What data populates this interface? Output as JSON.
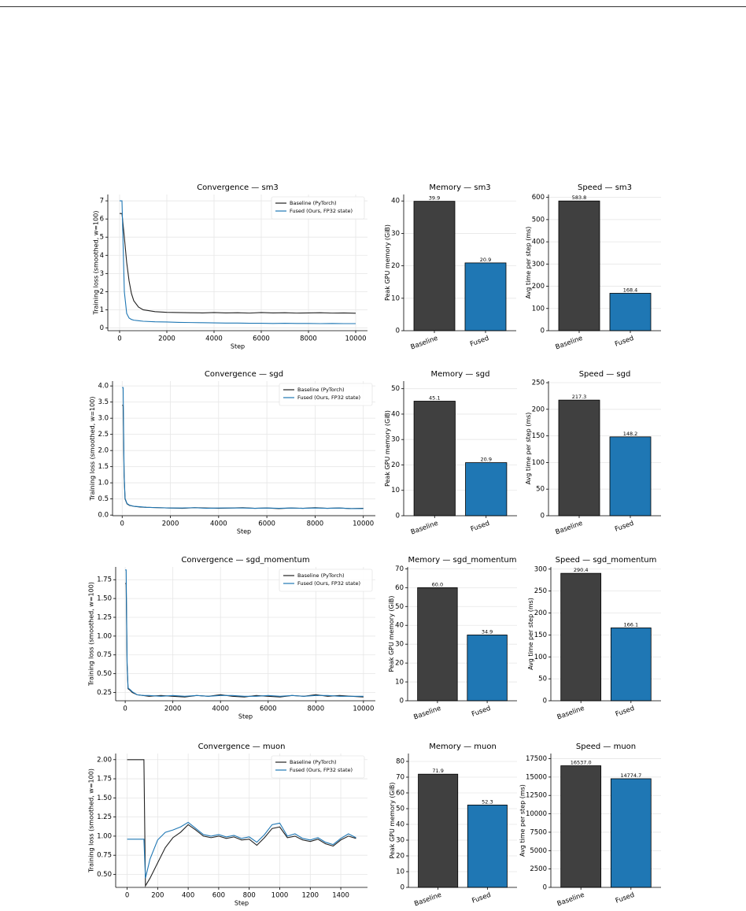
{
  "chart_data": [
    {
      "type": "line",
      "title": "Convergence — sm3",
      "x_label": "Step",
      "y_label": "Training loss (smoothed, w=100)",
      "grid": true,
      "legend": "upper right",
      "x": [
        0,
        100,
        200,
        300,
        400,
        500,
        600,
        800,
        1000,
        1500,
        2000,
        2500,
        3000,
        3500,
        4000,
        4500,
        5000,
        5500,
        6000,
        6500,
        7000,
        7500,
        8000,
        8500,
        9000,
        9500,
        10000
      ],
      "series": [
        {
          "name": "Baseline (PyTorch)",
          "color": "#222222",
          "values": [
            6.3,
            6.3,
            5.0,
            3.6,
            2.6,
            1.9,
            1.5,
            1.15,
            1.0,
            0.9,
            0.86,
            0.85,
            0.84,
            0.83,
            0.85,
            0.83,
            0.84,
            0.82,
            0.85,
            0.83,
            0.84,
            0.82,
            0.83,
            0.84,
            0.82,
            0.83,
            0.81
          ]
        },
        {
          "name": "Fused (Ours, FP32 state)",
          "color": "#1f77b4",
          "values": [
            7.0,
            7.0,
            2.0,
            0.8,
            0.55,
            0.47,
            0.43,
            0.4,
            0.37,
            0.34,
            0.33,
            0.31,
            0.3,
            0.29,
            0.28,
            0.27,
            0.27,
            0.26,
            0.26,
            0.25,
            0.26,
            0.25,
            0.25,
            0.24,
            0.25,
            0.24,
            0.24
          ]
        }
      ],
      "xlim": [
        -500,
        10500
      ],
      "xticks": [
        0,
        2000,
        4000,
        6000,
        8000,
        10000
      ],
      "ylim": [
        -0.15,
        7.35
      ],
      "yticks": [
        0,
        1,
        2,
        3,
        4,
        5,
        6,
        7
      ]
    },
    {
      "type": "bar",
      "title": "Memory — sm3",
      "y_label": "Peak GPU memory (GiB)",
      "grid": true,
      "categories": [
        "Baseline",
        "Fused"
      ],
      "values": [
        39.9,
        20.9
      ],
      "value_labels": [
        "39.9",
        "20.9"
      ],
      "colors": [
        "#404040",
        "#1f77b4"
      ],
      "ylim": [
        0,
        42
      ],
      "yticks": [
        0,
        10,
        20,
        30,
        40
      ]
    },
    {
      "type": "bar",
      "title": "Speed — sm3",
      "y_label": "Avg time per step (ms)",
      "grid": true,
      "categories": [
        "Baseline",
        "Fused"
      ],
      "values": [
        583.8,
        168.4
      ],
      "value_labels": [
        "583.8",
        "168.4"
      ],
      "colors": [
        "#404040",
        "#1f77b4"
      ],
      "ylim": [
        0,
        613
      ],
      "yticks": [
        0,
        100,
        200,
        300,
        400,
        500,
        600
      ]
    },
    {
      "type": "line",
      "title": "Convergence — sgd",
      "x_label": "Step",
      "y_label": "Training loss (smoothed, w=100)",
      "grid": true,
      "legend": "upper right",
      "x": [
        0,
        40,
        80,
        120,
        200,
        300,
        500,
        750,
        1000,
        1500,
        2000,
        2500,
        3000,
        3500,
        4000,
        4500,
        5000,
        5500,
        6000,
        6500,
        7000,
        7500,
        8000,
        8500,
        9000,
        9500,
        10000
      ],
      "series": [
        {
          "name": "Baseline (PyTorch)",
          "color": "#222222",
          "values": [
            3.4,
            3.4,
            1.2,
            0.5,
            0.35,
            0.3,
            0.27,
            0.25,
            0.24,
            0.23,
            0.22,
            0.21,
            0.23,
            0.22,
            0.21,
            0.22,
            0.23,
            0.21,
            0.22,
            0.2,
            0.22,
            0.21,
            0.23,
            0.21,
            0.22,
            0.2,
            0.21
          ]
        },
        {
          "name": "Fused (Ours, FP32 state)",
          "color": "#1f77b4",
          "values": [
            3.95,
            3.95,
            1.3,
            0.52,
            0.36,
            0.31,
            0.27,
            0.26,
            0.24,
            0.23,
            0.22,
            0.22,
            0.23,
            0.21,
            0.22,
            0.22,
            0.22,
            0.21,
            0.22,
            0.21,
            0.22,
            0.21,
            0.22,
            0.21,
            0.22,
            0.2,
            0.2
          ]
        }
      ],
      "xlim": [
        -400,
        10500
      ],
      "xticks": [
        0,
        2000,
        4000,
        6000,
        8000,
        10000
      ],
      "ylim": [
        -0.02,
        4.15
      ],
      "yticks": [
        {
          "value": 0,
          "label": "0.0"
        },
        0.5,
        {
          "value": 1,
          "label": "1.0"
        },
        1.5,
        {
          "value": 2,
          "label": "2.0"
        },
        2.5,
        {
          "value": 3,
          "label": "3.0"
        },
        3.5,
        {
          "value": 4,
          "label": "4.0"
        }
      ]
    },
    {
      "type": "bar",
      "title": "Memory — sgd",
      "y_label": "Peak GPU memory (GiB)",
      "grid": true,
      "categories": [
        "Baseline",
        "Fused"
      ],
      "values": [
        45.1,
        20.9
      ],
      "value_labels": [
        "45.1",
        "20.9"
      ],
      "colors": [
        "#404040",
        "#1f77b4"
      ],
      "ylim": [
        0,
        53
      ],
      "yticks": [
        0,
        10,
        20,
        30,
        40,
        50
      ]
    },
    {
      "type": "bar",
      "title": "Speed — sgd",
      "y_label": "Avg time per step (ms)",
      "grid": true,
      "categories": [
        "Baseline",
        "Fused"
      ],
      "values": [
        217.3,
        148.2
      ],
      "value_labels": [
        "217.3",
        "148.2"
      ],
      "colors": [
        "#404040",
        "#1f77b4"
      ],
      "ylim": [
        0,
        253
      ],
      "yticks": [
        0,
        50,
        100,
        150,
        200,
        250
      ]
    },
    {
      "type": "line",
      "title": "Convergence — sgd_momentum",
      "x_label": "Step",
      "y_label": "Training loss (smoothed, w=100)",
      "grid": true,
      "legend": "upper right",
      "x": [
        0,
        40,
        80,
        120,
        200,
        300,
        500,
        750,
        1000,
        1500,
        2000,
        2500,
        3000,
        3500,
        4000,
        4500,
        5000,
        5500,
        6000,
        6500,
        7000,
        7500,
        8000,
        8500,
        9000,
        9500,
        10000
      ],
      "series": [
        {
          "name": "Baseline (PyTorch)",
          "color": "#222222",
          "values": [
            1.7,
            1.7,
            0.6,
            0.3,
            0.28,
            0.25,
            0.22,
            0.21,
            0.2,
            0.21,
            0.2,
            0.19,
            0.21,
            0.2,
            0.22,
            0.2,
            0.19,
            0.21,
            0.2,
            0.19,
            0.21,
            0.2,
            0.22,
            0.2,
            0.21,
            0.2,
            0.19
          ]
        },
        {
          "name": "Fused (Ours, FP32 state)",
          "color": "#1f77b4",
          "values": [
            1.88,
            1.88,
            0.65,
            0.31,
            0.29,
            0.26,
            0.22,
            0.21,
            0.21,
            0.2,
            0.21,
            0.2,
            0.21,
            0.2,
            0.21,
            0.21,
            0.2,
            0.2,
            0.21,
            0.2,
            0.21,
            0.2,
            0.21,
            0.21,
            0.2,
            0.2,
            0.2
          ]
        }
      ],
      "xlim": [
        -400,
        10500
      ],
      "xticks": [
        0,
        2000,
        4000,
        6000,
        8000,
        10000
      ],
      "ylim": [
        0.14,
        1.92
      ],
      "yticks": [
        0.25,
        {
          "value": 0.5,
          "label": "0.50"
        },
        0.75,
        {
          "value": 1,
          "label": "1.00"
        },
        1.25,
        {
          "value": 1.5,
          "label": "1.50"
        },
        1.75
      ]
    },
    {
      "type": "bar",
      "title": "Memory — sgd_momentum",
      "y_label": "Peak GPU memory (GiB)",
      "grid": true,
      "categories": [
        "Baseline",
        "Fused"
      ],
      "values": [
        60,
        34.9
      ],
      "value_labels": [
        "60.0",
        "34.9"
      ],
      "colors": [
        "#404040",
        "#1f77b4"
      ],
      "ylim": [
        0,
        71
      ],
      "yticks": [
        0,
        10,
        20,
        30,
        40,
        50,
        60,
        70
      ]
    },
    {
      "type": "bar",
      "title": "Speed — sgd_momentum",
      "y_label": "Avg time per step (ms)",
      "grid": true,
      "categories": [
        "Baseline",
        "Fused"
      ],
      "values": [
        290.4,
        166.1
      ],
      "value_labels": [
        "290.4",
        "166.1"
      ],
      "colors": [
        "#404040",
        "#1f77b4"
      ],
      "ylim": [
        0,
        305
      ],
      "yticks": [
        0,
        50,
        100,
        150,
        200,
        250,
        300
      ]
    },
    {
      "type": "line",
      "title": "Convergence — muon",
      "x_label": "Step",
      "y_label": "Training loss (smoothed, w=100)",
      "grid": true,
      "legend": "upper right",
      "x": [
        0,
        50,
        100,
        110,
        120,
        150,
        200,
        250,
        300,
        350,
        400,
        450,
        500,
        550,
        600,
        650,
        700,
        750,
        800,
        850,
        900,
        950,
        1000,
        1050,
        1100,
        1150,
        1200,
        1250,
        1300,
        1350,
        1400,
        1450,
        1500
      ],
      "series": [
        {
          "name": "Baseline (PyTorch)",
          "color": "#222222",
          "values": [
            2.0,
            2.0,
            2.0,
            2.0,
            0.35,
            0.45,
            0.65,
            0.85,
            0.98,
            1.05,
            1.15,
            1.08,
            1.0,
            0.98,
            1.0,
            0.97,
            0.99,
            0.95,
            0.96,
            0.88,
            0.98,
            1.1,
            1.12,
            0.98,
            1.0,
            0.95,
            0.93,
            0.96,
            0.9,
            0.87,
            0.95,
            1.0,
            0.97
          ]
        },
        {
          "name": "Fused (Ours, FP32 state)",
          "color": "#1f77b4",
          "values": [
            0.96,
            0.96,
            0.96,
            0.96,
            0.45,
            0.7,
            0.95,
            1.05,
            1.08,
            1.12,
            1.18,
            1.1,
            1.02,
            1.0,
            1.02,
            0.99,
            1.01,
            0.97,
            0.99,
            0.92,
            1.02,
            1.15,
            1.17,
            1.0,
            1.03,
            0.97,
            0.95,
            0.98,
            0.92,
            0.89,
            0.97,
            1.03,
            0.98
          ]
        }
      ],
      "xlim": [
        -75,
        1575
      ],
      "xticks": [
        0,
        200,
        400,
        600,
        800,
        1000,
        1200,
        1400
      ],
      "ylim": [
        0.33,
        2.08
      ],
      "yticks": [
        {
          "value": 0.5,
          "label": "0.50"
        },
        0.75,
        {
          "value": 1,
          "label": "1.00"
        },
        1.25,
        {
          "value": 1.5,
          "label": "1.50"
        },
        1.75,
        {
          "value": 2,
          "label": "2.00"
        }
      ]
    },
    {
      "type": "bar",
      "title": "Memory — muon",
      "y_label": "Peak GPU memory (GiB)",
      "grid": true,
      "categories": [
        "Baseline",
        "Fused"
      ],
      "values": [
        71.9,
        52.3
      ],
      "value_labels": [
        "71.9",
        "52.3"
      ],
      "colors": [
        "#404040",
        "#1f77b4"
      ],
      "ylim": [
        0,
        85
      ],
      "yticks": [
        0,
        10,
        20,
        30,
        40,
        50,
        60,
        70,
        80
      ]
    },
    {
      "type": "bar",
      "title": "Speed — muon",
      "y_label": "Avg time per step (ms)",
      "grid": true,
      "categories": [
        "Baseline",
        "Fused"
      ],
      "values": [
        16537,
        14774.7
      ],
      "value_labels": [
        "16537.0",
        "14774.7"
      ],
      "colors": [
        "#404040",
        "#1f77b4"
      ],
      "ylim": [
        0,
        18200
      ],
      "yticks": [
        0,
        2500,
        5000,
        7500,
        10000,
        12500,
        15000,
        17500
      ]
    }
  ]
}
